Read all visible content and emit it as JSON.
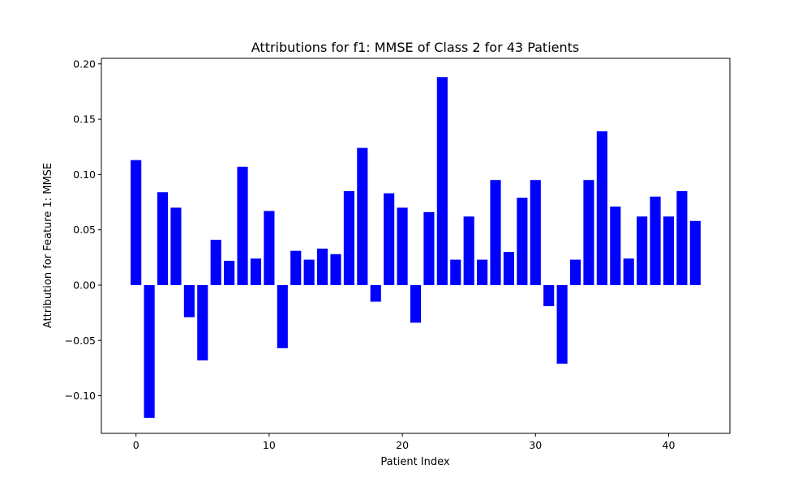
{
  "chart_data": {
    "type": "bar",
    "title": "Attributions for f1: MMSE of Class 2 for 43 Patients",
    "xlabel": "Patient Index",
    "ylabel": "Attribution for Feature 1: MMSE",
    "xlim": [
      -2.6,
      44.6
    ],
    "ylim": [
      -0.134,
      0.205
    ],
    "xticks": [
      0,
      10,
      20,
      30,
      40
    ],
    "xtick_labels": [
      "0",
      "10",
      "20",
      "30",
      "40"
    ],
    "yticks": [
      -0.1,
      -0.05,
      0.0,
      0.05,
      0.1,
      0.15,
      0.2
    ],
    "ytick_labels": [
      "−0.10",
      "−0.05",
      "0.00",
      "0.05",
      "0.10",
      "0.15",
      "0.20"
    ],
    "grid": false,
    "bar_color": "#0000ff",
    "x": [
      0,
      1,
      2,
      3,
      4,
      5,
      6,
      7,
      8,
      9,
      10,
      11,
      12,
      13,
      14,
      15,
      16,
      17,
      18,
      19,
      20,
      21,
      22,
      23,
      24,
      25,
      26,
      27,
      28,
      29,
      30,
      31,
      32,
      33,
      34,
      35,
      36,
      37,
      38,
      39,
      40,
      41,
      42
    ],
    "values": [
      0.113,
      -0.12,
      0.084,
      0.07,
      -0.029,
      -0.068,
      0.041,
      0.022,
      0.107,
      0.024,
      0.067,
      -0.057,
      0.031,
      0.023,
      0.033,
      0.028,
      0.085,
      0.124,
      -0.015,
      0.083,
      0.07,
      -0.034,
      0.066,
      0.188,
      0.023,
      0.062,
      0.023,
      0.095,
      0.03,
      0.079,
      0.095,
      -0.019,
      -0.071,
      0.023,
      0.095,
      0.139,
      0.071,
      0.024,
      0.062,
      0.08,
      0.062,
      0.085,
      0.058
    ]
  }
}
